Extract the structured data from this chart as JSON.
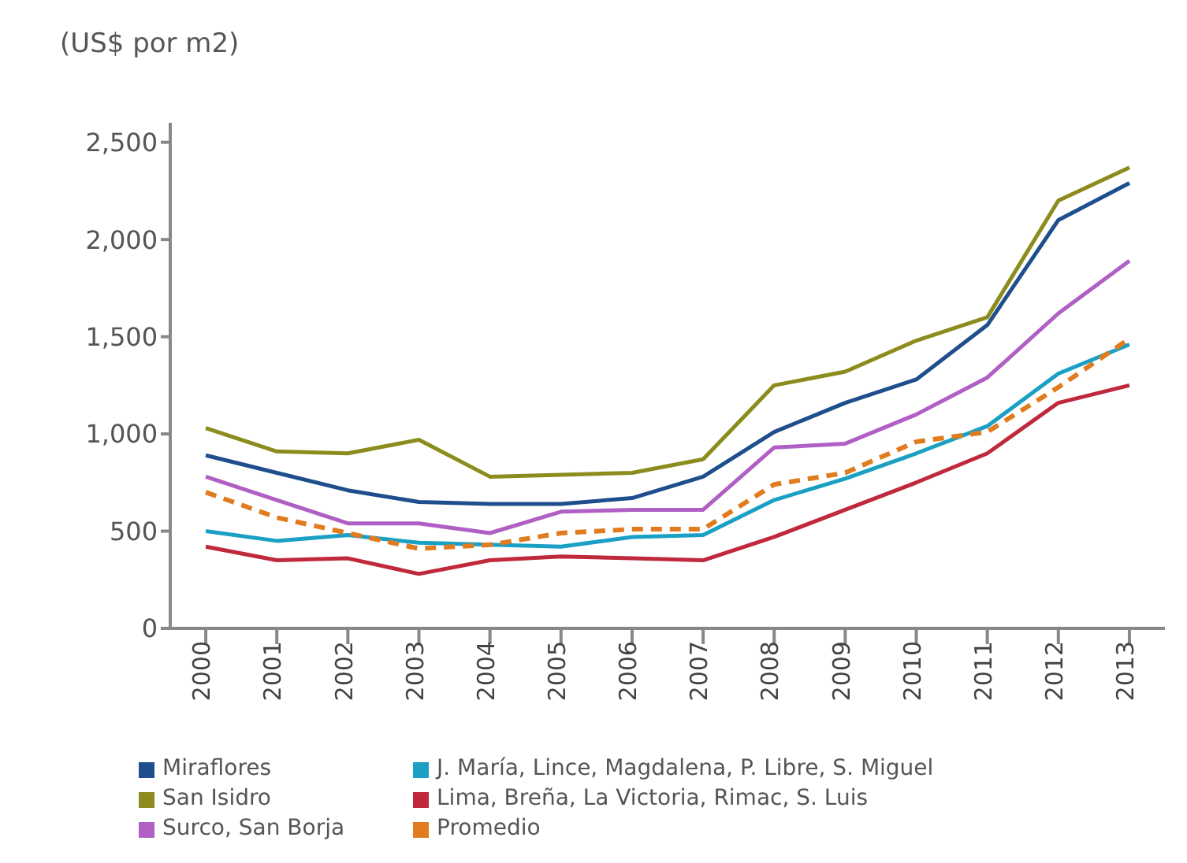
{
  "chart_data": {
    "type": "line",
    "title": "(US$ por m2)",
    "categories": [
      "2000",
      "2001",
      "2002",
      "2003",
      "2004",
      "2005",
      "2006",
      "2007",
      "2008",
      "2009",
      "2010",
      "2011",
      "2012",
      "2013"
    ],
    "ylim": [
      0,
      2600
    ],
    "yticks": [
      0,
      500,
      {
        "value": 1000,
        "label": "1,000"
      },
      {
        "value": 1500,
        "label": "1,500"
      },
      {
        "value": 2000,
        "label": "2,000"
      },
      {
        "value": 2500,
        "label": "2,500"
      }
    ],
    "grid": false,
    "legend": "bottom",
    "marker": "none",
    "series": [
      {
        "name": "Miraflores",
        "color": "#1f4e8c",
        "values": [
          890,
          800,
          710,
          650,
          640,
          640,
          670,
          780,
          1010,
          1160,
          1280,
          1560,
          2100,
          2290
        ]
      },
      {
        "name": "San Isidro",
        "color": "#8c8c1e",
        "values": [
          1030,
          910,
          900,
          970,
          780,
          790,
          800,
          870,
          1250,
          1320,
          1480,
          1600,
          2200,
          2370
        ]
      },
      {
        "name": "Surco, San Borja",
        "color": "#b05fc4",
        "values": [
          780,
          660,
          540,
          540,
          490,
          600,
          610,
          610,
          930,
          950,
          1100,
          1290,
          1620,
          1890
        ]
      },
      {
        "name": "J. María, Lince, Magdalena, P. Libre, S. Miguel",
        "color": "#1aa0c4",
        "values": [
          500,
          450,
          480,
          440,
          430,
          420,
          470,
          480,
          660,
          770,
          900,
          1040,
          1310,
          1460
        ]
      },
      {
        "name": "Lima, Breña, La Victoria, Rimac, S. Luis",
        "color": "#c0283c",
        "values": [
          420,
          350,
          360,
          280,
          350,
          370,
          360,
          350,
          470,
          610,
          750,
          900,
          1160,
          1250
        ]
      },
      {
        "name": "Promedio",
        "color": "#e07b1e",
        "line_style": "dashed",
        "values": [
          700,
          570,
          490,
          410,
          430,
          490,
          510,
          510,
          740,
          800,
          960,
          1010,
          1240,
          1490
        ]
      }
    ]
  }
}
